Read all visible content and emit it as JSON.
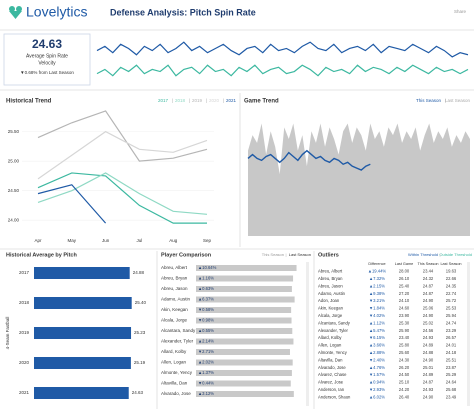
{
  "header": {
    "logo": "Lovelytics",
    "title": "Defense Analysis: Pitch Spin Rate",
    "share": "Share"
  },
  "kpi": {
    "value": "24.63",
    "label": "Average Spin Rate",
    "metric": "Velocity",
    "change": "▼0.68% from Last Season"
  },
  "chart_data": [
    {
      "type": "line",
      "series": [
        {
          "color": "#1f5aa6",
          "values": [
            25.3,
            25.5,
            25.2,
            25.6,
            25.4,
            25.1,
            25.5,
            25.3,
            25.6,
            25.2,
            25.4,
            25.7,
            25.3,
            25.5,
            25.2,
            25.4,
            25.6,
            25.3,
            25.1,
            25.4,
            25.5,
            25.2,
            25.6,
            25.3,
            25.4,
            25.2,
            25.5,
            25.7,
            25.4,
            25.3,
            25.6,
            25.2,
            25.4,
            25.5,
            25.3,
            25.6,
            25.2,
            25.5,
            25.4,
            25.3,
            25.6,
            25.4,
            25.2,
            25.5,
            25.3,
            25.0,
            25.2,
            25.1
          ]
        },
        {
          "color": "#3cb8a0",
          "values": [
            24.2,
            24.4,
            24.1,
            24.5,
            24.3,
            24.6,
            24.2,
            24.4,
            24.3,
            24.6,
            24.1,
            24.4,
            24.5,
            24.2,
            24.6,
            24.3,
            24.4,
            24.1,
            24.5,
            24.3,
            24.6,
            24.2,
            24.4,
            24.5,
            24.2,
            24.3,
            24.6,
            24.4,
            24.1,
            24.5,
            24.3,
            24.4,
            24.2,
            24.6,
            24.3,
            24.5,
            24.4,
            24.2,
            24.5,
            24.3,
            24.6,
            24.4,
            24.2,
            24.5,
            24.3,
            24.4,
            24.2,
            24.4
          ]
        }
      ],
      "ylim": [
        23.8,
        25.9
      ]
    },
    {
      "type": "line",
      "title": "Historical Trend",
      "categories": [
        "Apr",
        "May",
        "Jun",
        "Jul",
        "Aug",
        "Sep"
      ],
      "series": [
        {
          "name": "2017",
          "color": "#3cb8a0",
          "values": [
            24.55,
            24.8,
            24.75,
            24.25,
            23.95,
            23.95
          ]
        },
        {
          "name": "2018",
          "color": "#8fd9c4",
          "values": [
            24.3,
            24.5,
            24.8,
            24.45,
            24.15,
            24.1
          ]
        },
        {
          "name": "2019",
          "color": "#b5b5b5",
          "values": [
            25.4,
            25.65,
            25.85,
            25.0,
            25.05,
            25.2
          ]
        },
        {
          "name": "2020",
          "color": "#d6d6d6",
          "values": [
            24.7,
            25.1,
            25.5,
            25.2,
            25.15,
            25.35
          ]
        },
        {
          "name": "2021",
          "color": "#1f5aa6",
          "values": [
            24.45,
            24.6,
            23.95,
            null,
            null,
            null
          ]
        }
      ],
      "ylim": [
        23.8,
        25.9
      ],
      "yticks": [
        {
          "value": 24,
          "label": "24.00"
        },
        {
          "value": 24.5,
          "label": "24.50"
        },
        {
          "value": 25,
          "label": "25.00"
        },
        {
          "value": 25.5,
          "label": "25.50"
        }
      ]
    },
    {
      "type": "area",
      "title": "Game Trend",
      "series": [
        {
          "name": "This Season",
          "color": "#1f5aa6",
          "kind": "line",
          "values": [
            25.0,
            25.1,
            25.0,
            24.95,
            25.05,
            25.1,
            25.0,
            24.9,
            25.0,
            25.15,
            25.05,
            24.95,
            25.1,
            25.2,
            25.1,
            25.0,
            25.05,
            24.95,
            24.9,
            25.0,
            24.95,
            24.85,
            24.9,
            24.8,
            24.75,
            24.7,
            24.8,
            24.85,
            null,
            null,
            null,
            null,
            null,
            null,
            null,
            null,
            null,
            null,
            null,
            null,
            null,
            null,
            null,
            null,
            null,
            null,
            null,
            null,
            null,
            null
          ]
        },
        {
          "name": "Last Season",
          "color": "#c8c8c8",
          "kind": "area",
          "values": [
            25.2,
            25.6,
            25.4,
            25.9,
            25.1,
            25.7,
            25.3,
            24.6,
            25.8,
            25.5,
            25.9,
            25.2,
            25.6,
            24.8,
            25.7,
            25.4,
            25.9,
            25.3,
            25.8,
            25.5,
            25.1,
            25.7,
            25.9,
            25.4,
            25.8,
            25.6,
            25.2,
            25.9,
            25.5,
            25.7,
            25.3,
            25.8,
            25.6,
            25.9,
            25.4,
            25.7,
            25.5,
            25.8,
            25.2,
            25.6,
            25.9,
            25.4,
            25.7,
            25.5,
            25.8,
            25.3,
            25.6,
            25.4,
            25.7,
            25.5
          ]
        }
      ],
      "ylim": [
        23,
        26.3
      ]
    },
    {
      "type": "bar",
      "title": "Historical Average by Pitch",
      "axis_label": "4-Seam Fastball",
      "categories": [
        "2017",
        "2018",
        "2019",
        "2020",
        "2021"
      ],
      "values": [
        24.88,
        25.4,
        25.23,
        25.19,
        24.63
      ],
      "value_labels": [
        "24.88",
        "25.40",
        "25.23",
        "25.19",
        "24.63"
      ],
      "color": "#1f5aa6",
      "xlim": [
        0,
        26
      ]
    },
    {
      "type": "bar",
      "title": "Player Comparison",
      "legend": [
        "This Season",
        "Last Season"
      ],
      "categories": [
        "Abreu, Albert",
        "Abreu, Bryan",
        "Abreu, Jason",
        "Adamo, Austin",
        "Akin, Keegan",
        "Alcala, Jorge",
        "Alcantara, Sandy",
        "Alexander, Tyler",
        "Allard, Kolby",
        "Allen, Logan",
        "Almonte, Yency",
        "Altavilla, Dan",
        "Alvarado, Jose"
      ],
      "values": [
        26.1,
        25.2,
        24.9,
        25.6,
        24.7,
        24.8,
        25.0,
        25.3,
        24.4,
        25.1,
        24.9,
        24.6,
        25.4
      ],
      "color": "#c9c9c9",
      "xlim": [
        0,
        27
      ],
      "changes": {
        "values": [
          10.64,
          1.16,
          0.63,
          6.37,
          -0.58,
          -0.98,
          0.55,
          2.14,
          -2.71,
          2.02,
          1.37,
          -0.44,
          3.12
        ],
        "value_labels": [
          "▲10.64%",
          "▲1.16%",
          "▲0.63%",
          "▲6.37%",
          "▼0.58%",
          "▼0.98%",
          "▲0.55%",
          "▲2.14%",
          "▼2.71%",
          "▲2.02%",
          "▲1.37%",
          "▼0.44%",
          "▲3.12%"
        ]
      }
    }
  ],
  "outliers": {
    "title": "Outliers",
    "legend": [
      "Within Threshold",
      "Outside Threshold"
    ],
    "columns": [
      "Difference",
      "Last Game",
      "This Season",
      "Last Season"
    ],
    "rows": [
      [
        "Abreu, Albert",
        "▲19.44%",
        "28.00",
        "23.44",
        "19.63"
      ],
      [
        "Abreu, Bryan",
        "▲7.32%",
        "26.10",
        "24.32",
        "22.66"
      ],
      [
        "Abreu, Jason",
        "▲2.15%",
        "25.40",
        "24.87",
        "24.35"
      ],
      [
        "Adamo, Austin",
        "▲9.38%",
        "27.20",
        "24.87",
        "22.74"
      ],
      [
        "Adon, Joan",
        "▼3.21%",
        "24.10",
        "24.90",
        "25.72"
      ],
      [
        "Akin, Keegan",
        "▼1.84%",
        "24.60",
        "25.06",
        "25.53"
      ],
      [
        "Alcala, Jorge",
        "▼4.02%",
        "23.90",
        "24.90",
        "25.94"
      ],
      [
        "Alcantara, Sandy",
        "▲1.12%",
        "25.30",
        "25.02",
        "24.74"
      ],
      [
        "Alexander, Tyler",
        "▲5.47%",
        "25.90",
        "24.56",
        "23.29"
      ],
      [
        "Allard, Kolby",
        "▼6.15%",
        "23.40",
        "24.93",
        "26.57"
      ],
      [
        "Allen, Logan",
        "▲3.66%",
        "25.80",
        "24.89",
        "24.01"
      ],
      [
        "Almonte, Yency",
        "▲2.88%",
        "25.60",
        "24.88",
        "24.18"
      ],
      [
        "Altavilla, Dan",
        "▼2.40%",
        "24.30",
        "24.90",
        "25.51"
      ],
      [
        "Alvarado, Jose",
        "▲4.76%",
        "26.20",
        "25.01",
        "23.87"
      ],
      [
        "Alvarez, Chase",
        "▼1.57%",
        "24.50",
        "24.89",
        "25.29"
      ],
      [
        "Alvarez, Jose",
        "▲0.94%",
        "25.10",
        "24.87",
        "24.64"
      ],
      [
        "Anderson, Ian",
        "▼2.93%",
        "24.20",
        "24.93",
        "25.68"
      ],
      [
        "Anderson, Shaun",
        "▲6.02%",
        "26.40",
        "24.90",
        "23.49"
      ]
    ]
  }
}
